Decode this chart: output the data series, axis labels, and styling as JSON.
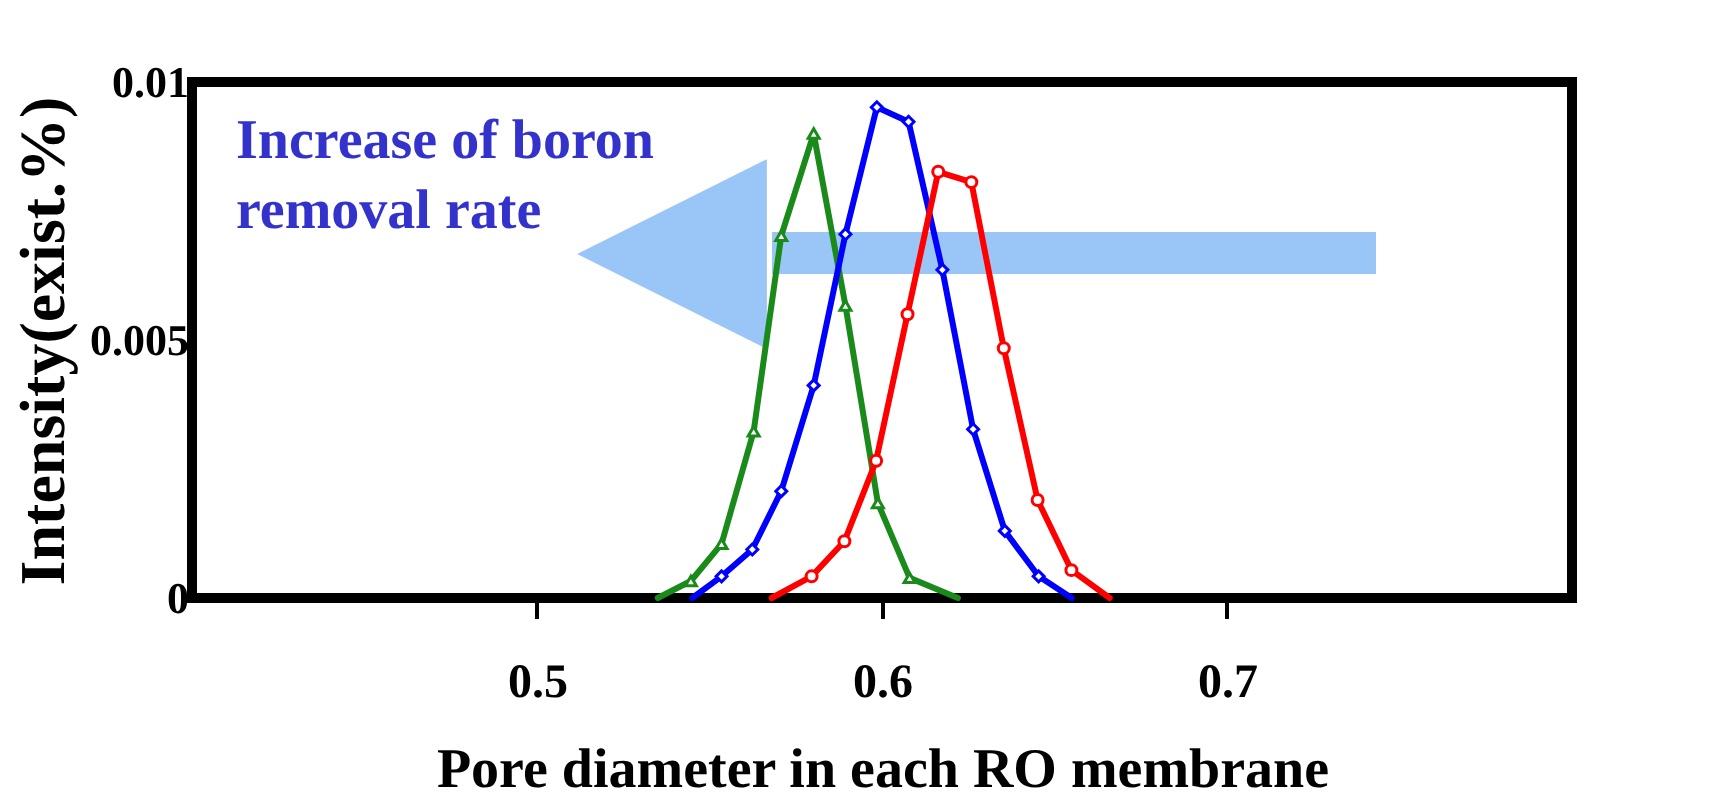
{
  "chart_data": {
    "type": "line",
    "xlabel": "Pore diameter in each RO membrane",
    "ylabel": "Intensity(exist.%)",
    "xlim": [
      0.4,
      0.8
    ],
    "ylim": [
      0,
      0.01
    ],
    "xticks": [
      0.5,
      0.6,
      0.7
    ],
    "yticks": [
      0,
      0.005,
      0.01
    ],
    "grid": false,
    "annotations": [
      "Increase of boron",
      "removal rate"
    ],
    "series": [
      {
        "color": "#1a8a1a",
        "marker": "triangle",
        "x": [
          0.535,
          0.5446,
          0.5535,
          0.5628,
          0.5708,
          0.5802,
          0.5894,
          0.5988,
          0.608,
          0.622
        ],
        "values": [
          0,
          0.00033,
          0.00105,
          0.00323,
          0.00702,
          0.009,
          0.00567,
          0.00184,
          0.00039,
          0
        ]
      },
      {
        "color": "#0000ff",
        "marker": "diamond",
        "x": [
          0.545,
          0.5535,
          0.5624,
          0.5708,
          0.5802,
          0.5894,
          0.5985,
          0.6077,
          0.6175,
          0.6264,
          0.6356,
          0.6454,
          0.655
        ],
        "values": [
          0,
          0.00042,
          0.00094,
          0.00207,
          0.00412,
          0.00705,
          0.00951,
          0.00923,
          0.00636,
          0.00327,
          0.0013,
          0.00042,
          0
        ]
      },
      {
        "color": "#ff0000",
        "marker": "circle",
        "x": [
          0.568,
          0.5796,
          0.5891,
          0.5983,
          0.6074,
          0.6163,
          0.6259,
          0.6353,
          0.6451,
          0.6549,
          0.666
        ],
        "values": [
          0,
          0.00042,
          0.0011,
          0.00266,
          0.0055,
          0.00826,
          0.00806,
          0.00484,
          0.0019,
          0.00054,
          0
        ]
      }
    ]
  }
}
